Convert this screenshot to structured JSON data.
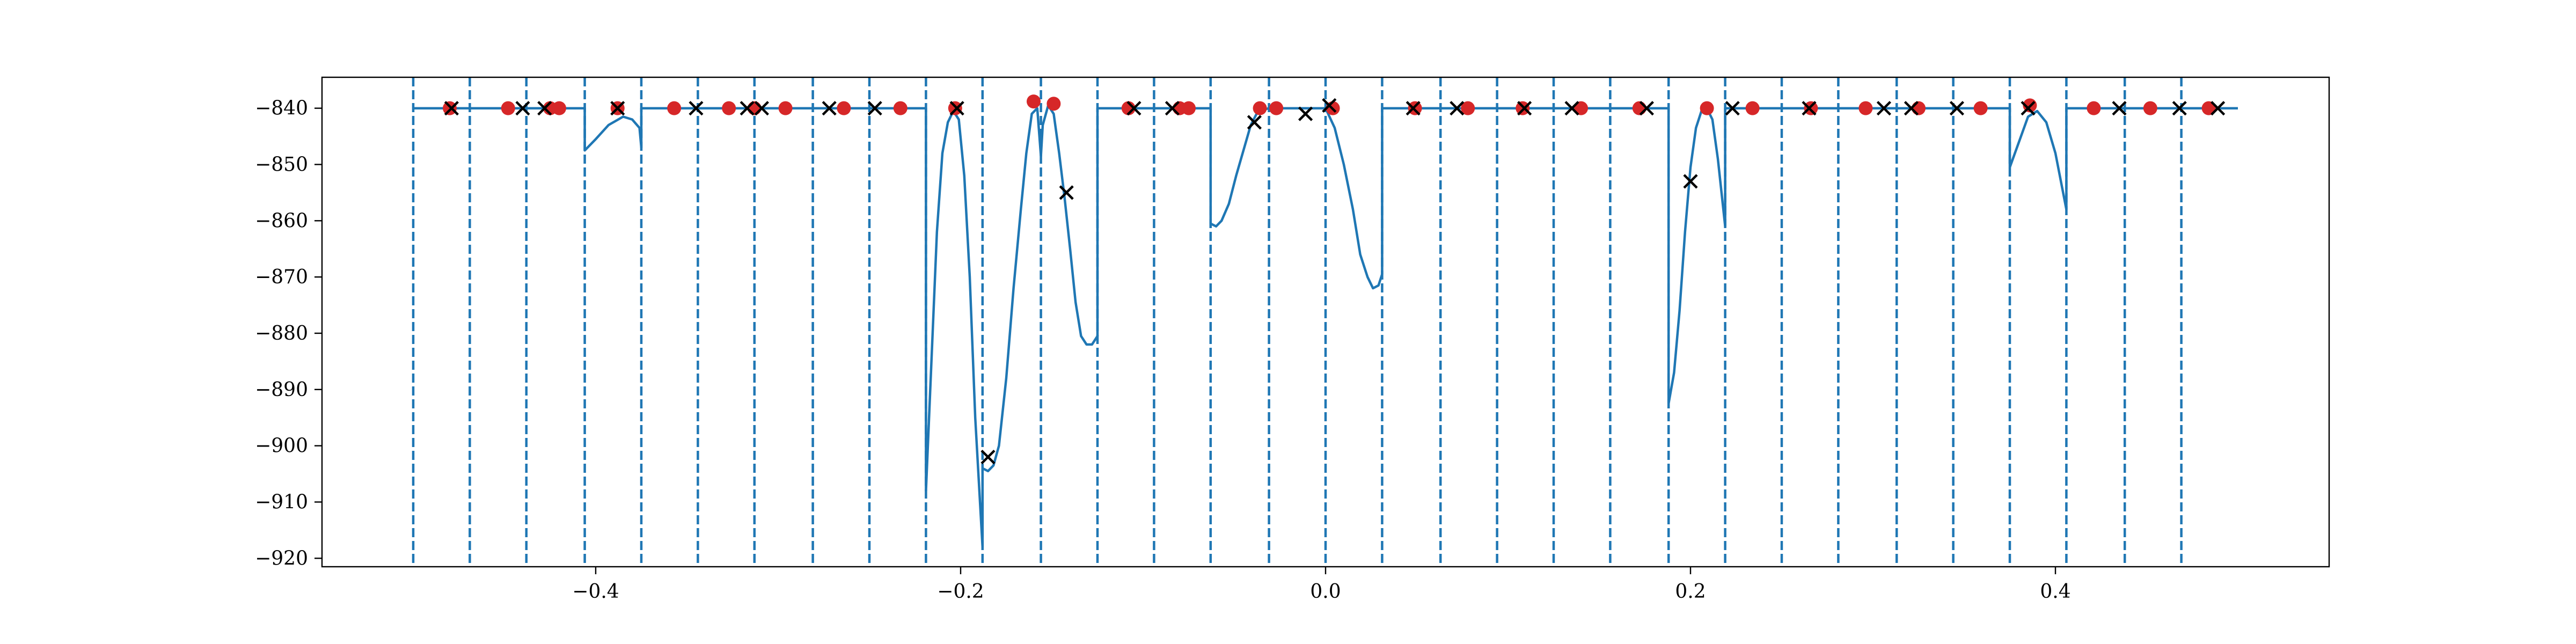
{
  "chart_data": {
    "type": "line",
    "title": "",
    "xlabel": "",
    "ylabel": "",
    "xlim": [
      -0.55,
      0.55
    ],
    "ylim": [
      -921.5,
      -834.5
    ],
    "x_ticks": [
      -0.4,
      -0.2,
      0.0,
      0.2,
      0.4
    ],
    "x_tick_labels": [
      "−0.4",
      "−0.2",
      "0.0",
      "0.2",
      "0.4"
    ],
    "y_ticks": [
      -920,
      -910,
      -900,
      -890,
      -880,
      -870,
      -860,
      -850,
      -840
    ],
    "y_tick_labels": [
      "−920",
      "−910",
      "−900",
      "−890",
      "−880",
      "−870",
      "−860",
      "−850",
      "−840"
    ],
    "grid": false,
    "colors": {
      "line": "#1f77b4",
      "vlines": "#1f77b4",
      "red_points": "#d62728",
      "x_markers": "#000000"
    },
    "vertical_dashed_lines": [
      -0.5,
      -0.469,
      -0.438,
      -0.406,
      -0.375,
      -0.344,
      -0.313,
      -0.281,
      -0.25,
      -0.219,
      -0.188,
      -0.156,
      -0.125,
      -0.094,
      -0.063,
      -0.031,
      0.0,
      0.031,
      0.063,
      0.094,
      0.125,
      0.156,
      0.188,
      0.219,
      0.25,
      0.281,
      0.313,
      0.344,
      0.375,
      0.406,
      0.438,
      0.469
    ],
    "series": [
      {
        "kind": "line",
        "points": [
          [
            -0.5,
            -840
          ],
          [
            -0.406,
            -840
          ],
          [
            -0.406,
            -847.5
          ],
          [
            -0.4,
            -845.5
          ],
          [
            -0.393,
            -843
          ],
          [
            -0.385,
            -841.5
          ],
          [
            -0.38,
            -842
          ],
          [
            -0.376,
            -843.5
          ],
          [
            -0.375,
            -847
          ],
          [
            -0.375,
            -840
          ],
          [
            -0.219,
            -840
          ],
          [
            -0.219,
            -908
          ],
          [
            -0.216,
            -885
          ],
          [
            -0.213,
            -862
          ],
          [
            -0.21,
            -848
          ],
          [
            -0.207,
            -842.5
          ],
          [
            -0.204,
            -840.5
          ],
          [
            -0.201,
            -842
          ],
          [
            -0.198,
            -852
          ],
          [
            -0.195,
            -870
          ],
          [
            -0.192,
            -895
          ],
          [
            -0.188,
            -918
          ],
          [
            -0.188,
            -904
          ],
          [
            -0.185,
            -904.5
          ],
          [
            -0.182,
            -903.5
          ],
          [
            -0.179,
            -900
          ],
          [
            -0.175,
            -888
          ],
          [
            -0.171,
            -872
          ],
          [
            -0.167,
            -858
          ],
          [
            -0.164,
            -848
          ],
          [
            -0.161,
            -841
          ],
          [
            -0.158,
            -840
          ],
          [
            -0.156,
            -848.5
          ],
          [
            -0.155,
            -843
          ],
          [
            -0.152,
            -839.5
          ],
          [
            -0.149,
            -841
          ],
          [
            -0.146,
            -848
          ],
          [
            -0.143,
            -856
          ],
          [
            -0.14,
            -865
          ],
          [
            -0.137,
            -874.5
          ],
          [
            -0.134,
            -880.5
          ],
          [
            -0.131,
            -882
          ],
          [
            -0.128,
            -882
          ],
          [
            -0.125,
            -880.5
          ],
          [
            -0.125,
            -840
          ],
          [
            -0.063,
            -840
          ],
          [
            -0.063,
            -860.5
          ],
          [
            -0.06,
            -861
          ],
          [
            -0.057,
            -860
          ],
          [
            -0.053,
            -857
          ],
          [
            -0.049,
            -852
          ],
          [
            -0.045,
            -847.5
          ],
          [
            -0.041,
            -843
          ],
          [
            -0.037,
            -840.5
          ],
          [
            -0.031,
            -840
          ],
          [
            0.0,
            -840
          ],
          [
            0.005,
            -843.5
          ],
          [
            0.01,
            -850
          ],
          [
            0.015,
            -858
          ],
          [
            0.019,
            -866
          ],
          [
            0.023,
            -870
          ],
          [
            0.026,
            -872
          ],
          [
            0.029,
            -871.5
          ],
          [
            0.031,
            -869.5
          ],
          [
            0.031,
            -840
          ],
          [
            0.188,
            -840
          ],
          [
            0.188,
            -892.5
          ],
          [
            0.191,
            -887
          ],
          [
            0.194,
            -876
          ],
          [
            0.197,
            -862
          ],
          [
            0.2,
            -850.5
          ],
          [
            0.203,
            -843.5
          ],
          [
            0.206,
            -840.5
          ],
          [
            0.209,
            -840
          ],
          [
            0.212,
            -842
          ],
          [
            0.215,
            -849
          ],
          [
            0.219,
            -861
          ],
          [
            0.219,
            -840
          ],
          [
            0.375,
            -840
          ],
          [
            0.375,
            -850.5
          ],
          [
            0.38,
            -846
          ],
          [
            0.385,
            -841.5
          ],
          [
            0.39,
            -840.5
          ],
          [
            0.395,
            -842.5
          ],
          [
            0.4,
            -848
          ],
          [
            0.406,
            -858
          ],
          [
            0.406,
            -840
          ],
          [
            0.5,
            -840
          ]
        ]
      },
      {
        "kind": "red-points",
        "points": [
          [
            -0.48,
            -840
          ],
          [
            -0.448,
            -840
          ],
          [
            -0.425,
            -840
          ],
          [
            -0.42,
            -840
          ],
          [
            -0.388,
            -840
          ],
          [
            -0.357,
            -840
          ],
          [
            -0.327,
            -840
          ],
          [
            -0.313,
            -840
          ],
          [
            -0.296,
            -840
          ],
          [
            -0.264,
            -840
          ],
          [
            -0.233,
            -840
          ],
          [
            -0.203,
            -840
          ],
          [
            -0.16,
            -838.8
          ],
          [
            -0.149,
            -839.2
          ],
          [
            -0.108,
            -840
          ],
          [
            -0.08,
            -840
          ],
          [
            -0.075,
            -840
          ],
          [
            -0.036,
            -840
          ],
          [
            -0.027,
            -840
          ],
          [
            0.004,
            -840
          ],
          [
            0.049,
            -840
          ],
          [
            0.078,
            -840
          ],
          [
            0.108,
            -840
          ],
          [
            0.14,
            -840
          ],
          [
            0.172,
            -840
          ],
          [
            0.209,
            -840
          ],
          [
            0.234,
            -840
          ],
          [
            0.266,
            -840
          ],
          [
            0.296,
            -840
          ],
          [
            0.325,
            -840
          ],
          [
            0.359,
            -840
          ],
          [
            0.386,
            -839.5
          ],
          [
            0.421,
            -840
          ],
          [
            0.452,
            -840
          ],
          [
            0.484,
            -840
          ]
        ]
      },
      {
        "kind": "x-markers",
        "points": [
          [
            -0.479,
            -840
          ],
          [
            -0.44,
            -840
          ],
          [
            -0.428,
            -840
          ],
          [
            -0.388,
            -840
          ],
          [
            -0.345,
            -840
          ],
          [
            -0.317,
            -840
          ],
          [
            -0.309,
            -840
          ],
          [
            -0.272,
            -840
          ],
          [
            -0.247,
            -840
          ],
          [
            -0.202,
            -840
          ],
          [
            -0.185,
            -902
          ],
          [
            -0.142,
            -855
          ],
          [
            -0.105,
            -840
          ],
          [
            -0.084,
            -840
          ],
          [
            -0.039,
            -842.5
          ],
          [
            -0.011,
            -841
          ],
          [
            0.002,
            -839.5
          ],
          [
            0.048,
            -840
          ],
          [
            0.072,
            -840
          ],
          [
            0.109,
            -840
          ],
          [
            0.135,
            -840
          ],
          [
            0.176,
            -840
          ],
          [
            0.2,
            -853
          ],
          [
            0.223,
            -840
          ],
          [
            0.265,
            -840
          ],
          [
            0.306,
            -840
          ],
          [
            0.321,
            -840
          ],
          [
            0.346,
            -840
          ],
          [
            0.385,
            -840
          ],
          [
            0.435,
            -840
          ],
          [
            0.468,
            -840
          ],
          [
            0.489,
            -840
          ]
        ]
      }
    ]
  }
}
